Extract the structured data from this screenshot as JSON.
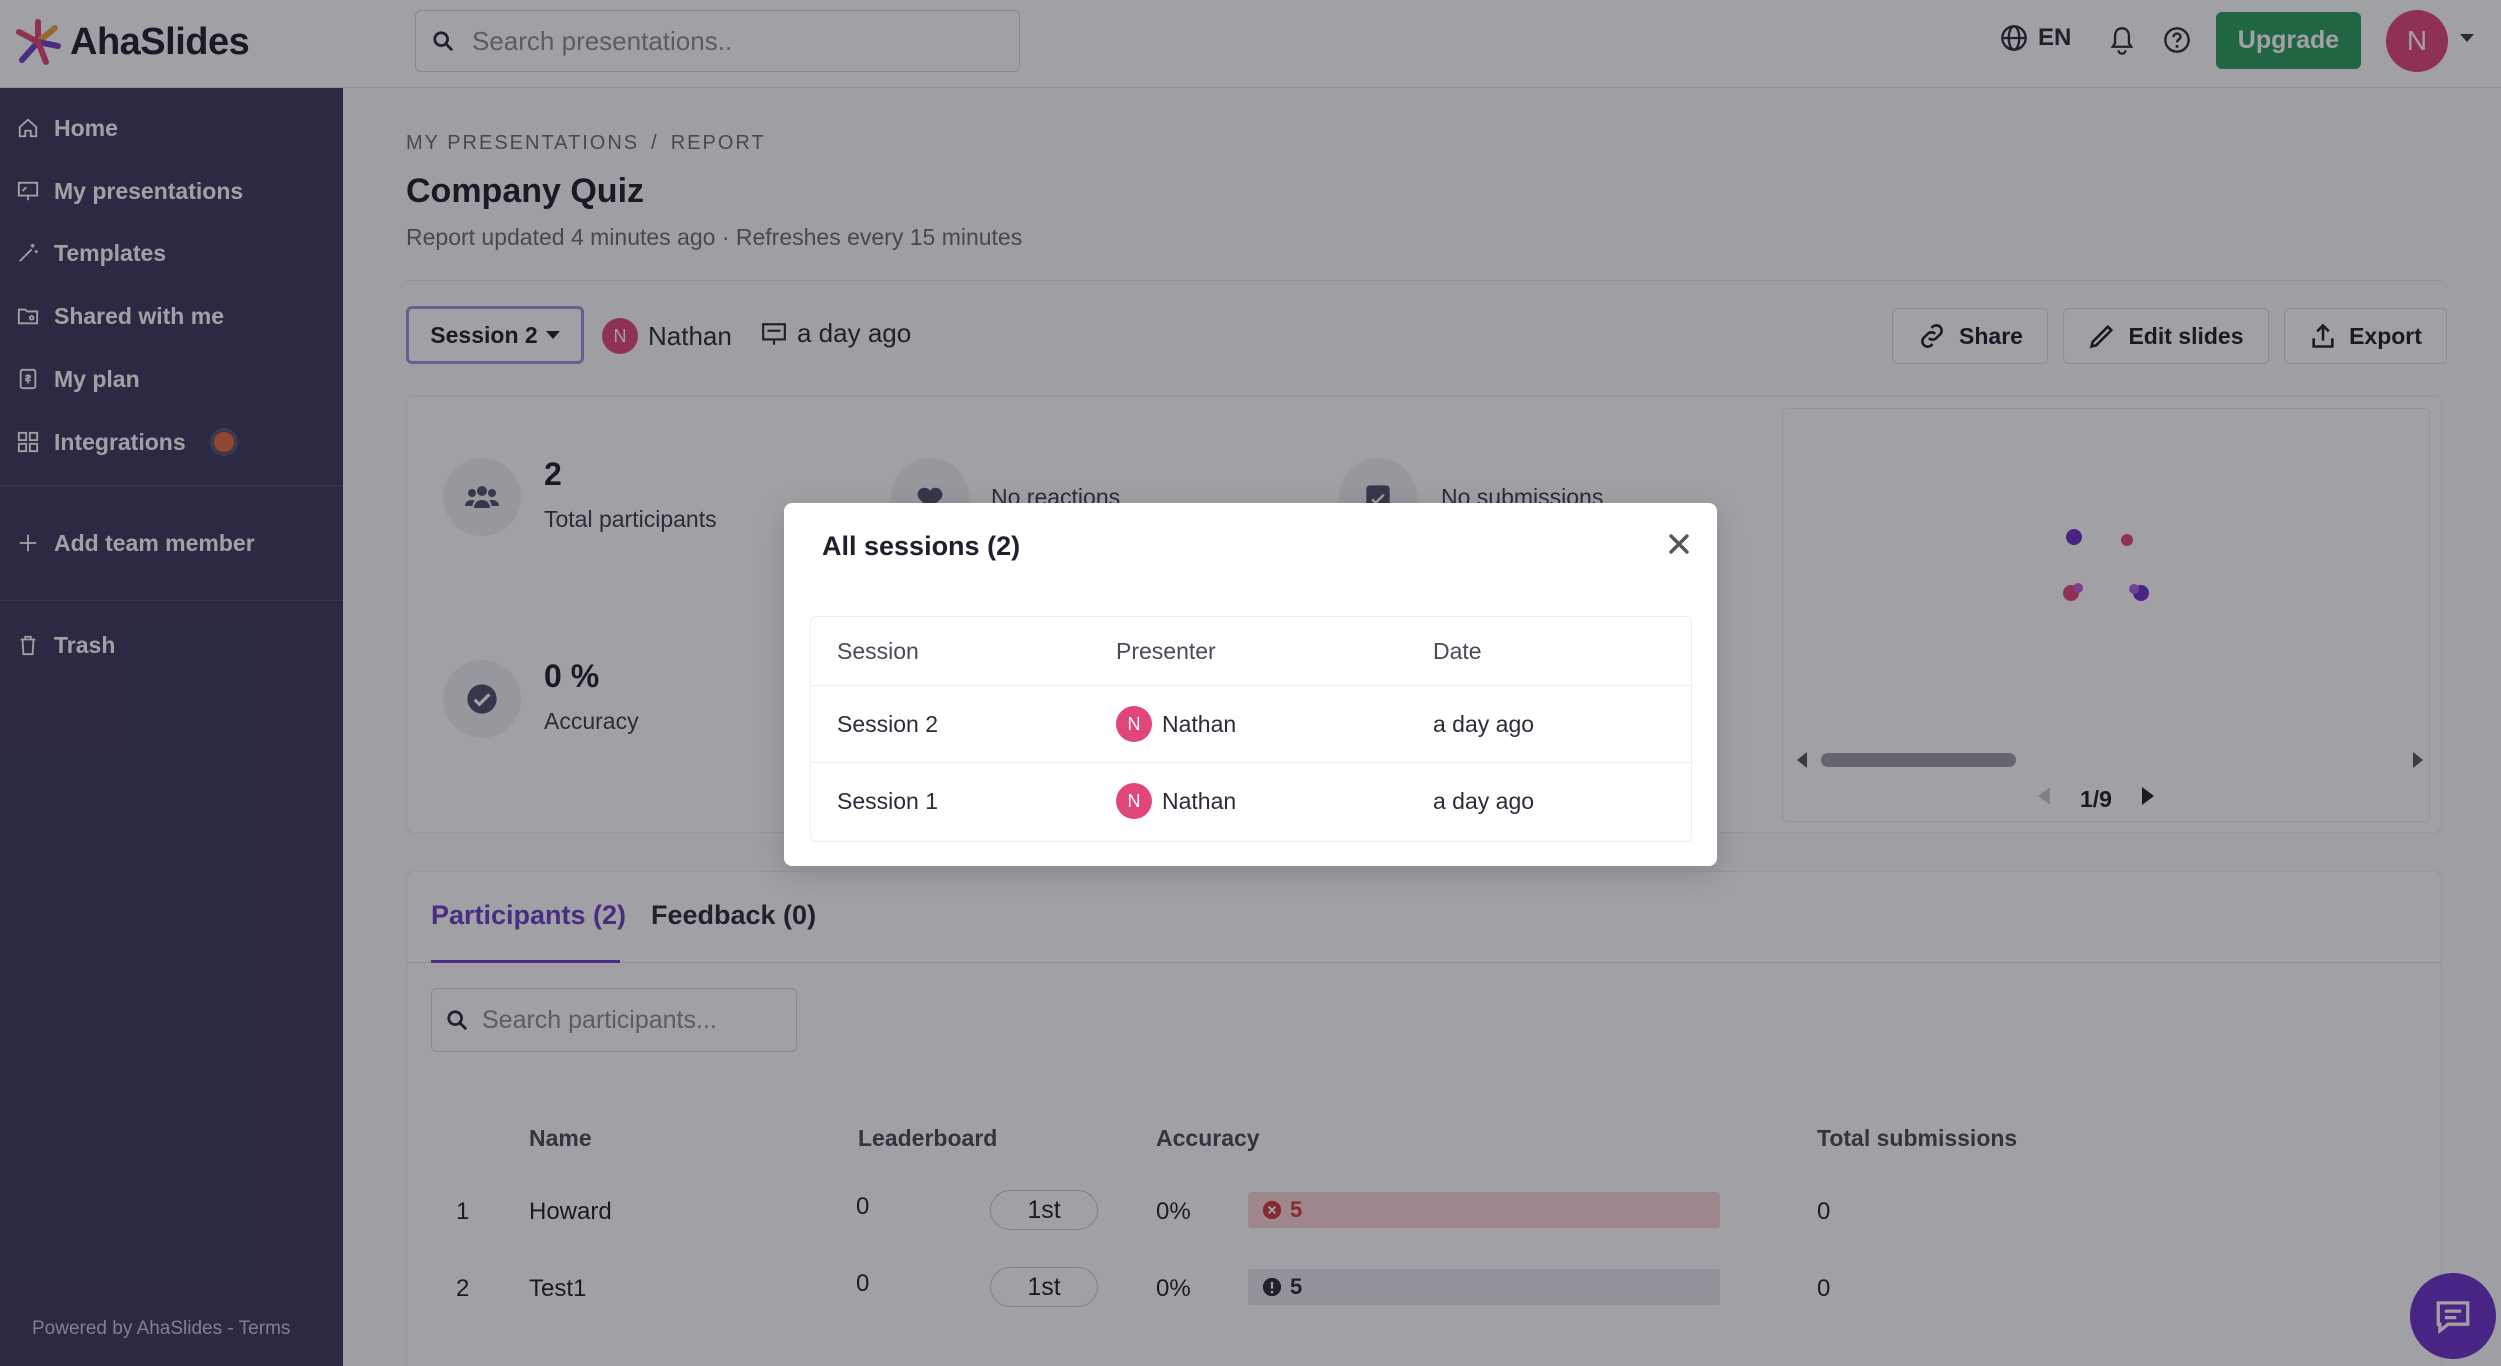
{
  "app": {
    "name": "AhaSlides"
  },
  "topbar": {
    "search_placeholder": "Search presentations..",
    "language": "EN",
    "upgrade_label": "Upgrade",
    "user_initial": "N"
  },
  "sidebar": {
    "items": [
      {
        "label": "Home",
        "icon": "home-icon"
      },
      {
        "label": "My presentations",
        "icon": "presentation-icon"
      },
      {
        "label": "Templates",
        "icon": "magic-wand-icon"
      },
      {
        "label": "Shared with me",
        "icon": "shared-folder-icon"
      },
      {
        "label": "My plan",
        "icon": "plan-icon"
      },
      {
        "label": "Integrations",
        "icon": "grid-icon"
      }
    ],
    "add_team_member": "Add team member",
    "trash": "Trash",
    "powered_by": "Powered by AhaSlides",
    "terms": "Terms"
  },
  "main": {
    "breadcrumb": [
      "MY PRESENTATIONS",
      "/",
      "REPORT"
    ],
    "title": "Company Quiz",
    "report_updated": "Report updated 4 minutes ago · Refreshes every 15 minutes",
    "session_selector": "Session 2",
    "presenter_initial": "N",
    "presenter_name": "Nathan",
    "session_date": "a day ago",
    "actions": {
      "share": "Share",
      "edit_slides": "Edit slides",
      "export": "Export"
    },
    "stats": {
      "participants_value": "2",
      "participants_label": "Total participants",
      "reactions_label": "No reactions",
      "submissions_label": "No submissions",
      "accuracy_value": "0 %",
      "accuracy_label": "Accuracy"
    },
    "slide_pager": "1/9",
    "tabs": {
      "participants": "Participants (2)",
      "feedback": "Feedback (0)"
    },
    "participants_search_placeholder": "Search participants...",
    "table": {
      "headers": {
        "name": "Name",
        "leaderboard": "Leaderboard",
        "accuracy": "Accuracy",
        "total_submissions": "Total submissions"
      },
      "rows": [
        {
          "index": "1",
          "name": "Howard",
          "score": "0",
          "rank": "1st",
          "accuracy": "0%",
          "bar_value": "5",
          "bar_status": "incorrect",
          "submissions": "0"
        },
        {
          "index": "2",
          "name": "Test1",
          "score": "0",
          "rank": "1st",
          "accuracy": "0%",
          "bar_value": "5",
          "bar_status": "unanswered",
          "submissions": "0"
        }
      ]
    }
  },
  "modal": {
    "title": "All sessions (2)",
    "headers": {
      "session": "Session",
      "presenter": "Presenter",
      "date": "Date"
    },
    "rows": [
      {
        "session": "Session 2",
        "presenter_initial": "N",
        "presenter": "Nathan",
        "date": "a day ago"
      },
      {
        "session": "Session 1",
        "presenter_initial": "N",
        "presenter": "Nathan",
        "date": "a day ago"
      }
    ]
  },
  "colors": {
    "sidebar_bg": "#3b3a5a",
    "accent_purple": "#6c3fc5",
    "upgrade_green": "#2a9d5c",
    "avatar_pink": "#e0457b"
  }
}
